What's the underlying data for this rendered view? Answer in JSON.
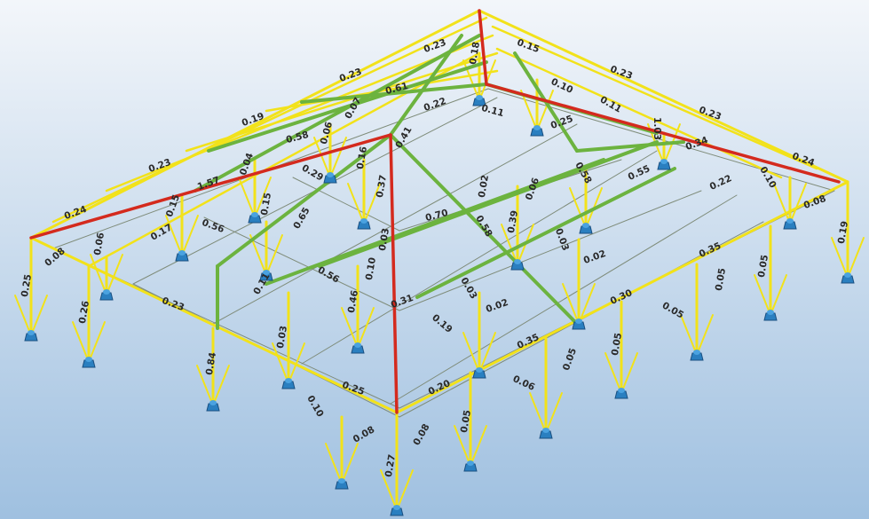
{
  "labels": [
    "0.23",
    "0.15",
    "0.18",
    "0.23",
    "0.23",
    "0.61",
    "0.10",
    "0.22",
    "0.11",
    "0.07",
    "0.19",
    "0.11",
    "0.23",
    "0.25",
    "0.06",
    "0.58",
    "1.03",
    "0.41",
    "0.34",
    "0.16",
    "0.04",
    "0.23",
    "0.24",
    "0.29",
    "0.58",
    "0.55",
    "1.57",
    "0.37",
    "0.10",
    "0.22",
    "0.02",
    "0.06",
    "0.15",
    "0.15",
    "0.08",
    "0.24",
    "0.65",
    "0.70",
    "0.56",
    "0.17",
    "0.39",
    "0.58",
    "0.19",
    "0.03",
    "0.06",
    "0.08",
    "0.03",
    "0.02",
    "0.35",
    "0.10",
    "0.56",
    "0.11",
    "0.05",
    "0.05",
    "0.25",
    "0.03",
    "0.30",
    "0.46",
    "0.31",
    "0.02",
    "0.26",
    "0.23",
    "0.05",
    "0.19",
    "0.03",
    "0.05",
    "0.35",
    "0.05",
    "0.84",
    "0.25",
    "0.06",
    "0.20",
    "0.10",
    "0.05",
    "0.08",
    "0.08",
    "0.27"
  ]
}
